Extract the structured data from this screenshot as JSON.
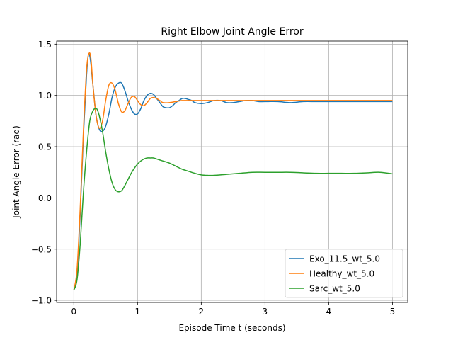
{
  "chart_data": {
    "type": "line",
    "title": "Right Elbow Joint Angle Error",
    "xlabel": "Episode Time t (seconds)",
    "ylabel": "Joint Angle Error (rad)",
    "xlim": [
      -0.27,
      5.24
    ],
    "ylim": [
      -1.02,
      1.53
    ],
    "xticks": [
      0,
      1,
      2,
      3,
      4,
      5
    ],
    "xtick_labels": [
      "0",
      "1",
      "2",
      "3",
      "4",
      "5"
    ],
    "yticks": [
      -1.0,
      -0.5,
      0.0,
      0.5,
      1.0,
      1.5
    ],
    "ytick_labels": [
      "−1.0",
      "−0.5",
      "0.0",
      "0.5",
      "1.0",
      "1.5"
    ],
    "grid": true,
    "legend_position": "lower-right",
    "series": [
      {
        "name": "Exo_11.5_wt_5.0",
        "color": "#1f77b4",
        "x": [
          0.0,
          0.05,
          0.1,
          0.15,
          0.2,
          0.23,
          0.26,
          0.3,
          0.35,
          0.4,
          0.45,
          0.5,
          0.55,
          0.6,
          0.65,
          0.7,
          0.75,
          0.8,
          0.85,
          0.9,
          0.95,
          1.0,
          1.05,
          1.1,
          1.15,
          1.2,
          1.25,
          1.3,
          1.35,
          1.4,
          1.45,
          1.5,
          1.55,
          1.6,
          1.65,
          1.7,
          1.75,
          1.8,
          1.85,
          1.9,
          2.0,
          2.1,
          2.2,
          2.3,
          2.4,
          2.5,
          2.6,
          2.7,
          2.8,
          2.9,
          3.0,
          3.2,
          3.4,
          3.6,
          3.8,
          4.0,
          4.2,
          4.4,
          4.6,
          4.8,
          5.0
        ],
        "y": [
          -0.9,
          -0.75,
          -0.15,
          0.6,
          1.2,
          1.4,
          1.35,
          1.1,
          0.8,
          0.67,
          0.65,
          0.7,
          0.82,
          0.98,
          1.08,
          1.12,
          1.12,
          1.05,
          0.95,
          0.87,
          0.82,
          0.82,
          0.87,
          0.95,
          1.0,
          1.02,
          1.01,
          0.97,
          0.93,
          0.89,
          0.88,
          0.88,
          0.9,
          0.93,
          0.95,
          0.97,
          0.97,
          0.96,
          0.95,
          0.93,
          0.92,
          0.93,
          0.95,
          0.95,
          0.93,
          0.93,
          0.94,
          0.95,
          0.95,
          0.94,
          0.94,
          0.94,
          0.93,
          0.94,
          0.94,
          0.94,
          0.94,
          0.94,
          0.94,
          0.94,
          0.94
        ]
      },
      {
        "name": "Healthy_wt_5.0",
        "color": "#ff7f0e",
        "x": [
          0.0,
          0.05,
          0.1,
          0.15,
          0.2,
          0.24,
          0.27,
          0.3,
          0.35,
          0.4,
          0.45,
          0.5,
          0.55,
          0.6,
          0.65,
          0.7,
          0.75,
          0.8,
          0.85,
          0.9,
          0.95,
          1.0,
          1.05,
          1.1,
          1.15,
          1.2,
          1.25,
          1.3,
          1.35,
          1.4,
          1.5,
          1.6,
          1.7,
          1.8,
          1.9,
          2.0,
          2.2,
          2.4,
          2.6,
          2.8,
          3.0,
          3.5,
          4.0,
          4.5,
          5.0
        ],
        "y": [
          -0.9,
          -0.7,
          -0.1,
          0.65,
          1.25,
          1.41,
          1.35,
          1.1,
          0.8,
          0.68,
          0.75,
          0.95,
          1.1,
          1.12,
          1.05,
          0.92,
          0.84,
          0.85,
          0.92,
          0.98,
          0.99,
          0.95,
          0.91,
          0.9,
          0.93,
          0.97,
          0.98,
          0.97,
          0.95,
          0.93,
          0.93,
          0.94,
          0.95,
          0.95,
          0.95,
          0.95,
          0.95,
          0.95,
          0.95,
          0.95,
          0.95,
          0.95,
          0.95,
          0.95,
          0.95
        ]
      },
      {
        "name": "Sarc_wt_5.0",
        "color": "#2ca02c",
        "x": [
          0.0,
          0.05,
          0.1,
          0.15,
          0.2,
          0.25,
          0.3,
          0.33,
          0.36,
          0.4,
          0.45,
          0.5,
          0.55,
          0.6,
          0.65,
          0.7,
          0.75,
          0.8,
          0.85,
          0.9,
          0.95,
          1.0,
          1.05,
          1.1,
          1.15,
          1.2,
          1.25,
          1.3,
          1.35,
          1.4,
          1.5,
          1.6,
          1.7,
          1.8,
          1.9,
          2.0,
          2.1,
          2.2,
          2.4,
          2.6,
          2.8,
          3.0,
          3.2,
          3.4,
          3.6,
          3.8,
          4.0,
          4.2,
          4.4,
          4.6,
          4.8,
          5.0
        ],
        "y": [
          -0.9,
          -0.8,
          -0.45,
          0.05,
          0.45,
          0.75,
          0.85,
          0.87,
          0.87,
          0.8,
          0.65,
          0.45,
          0.28,
          0.15,
          0.08,
          0.06,
          0.07,
          0.12,
          0.18,
          0.24,
          0.29,
          0.33,
          0.36,
          0.38,
          0.39,
          0.39,
          0.39,
          0.38,
          0.37,
          0.36,
          0.34,
          0.31,
          0.28,
          0.26,
          0.24,
          0.225,
          0.22,
          0.22,
          0.23,
          0.24,
          0.25,
          0.25,
          0.25,
          0.25,
          0.245,
          0.24,
          0.24,
          0.24,
          0.24,
          0.245,
          0.25,
          0.235
        ]
      }
    ]
  }
}
